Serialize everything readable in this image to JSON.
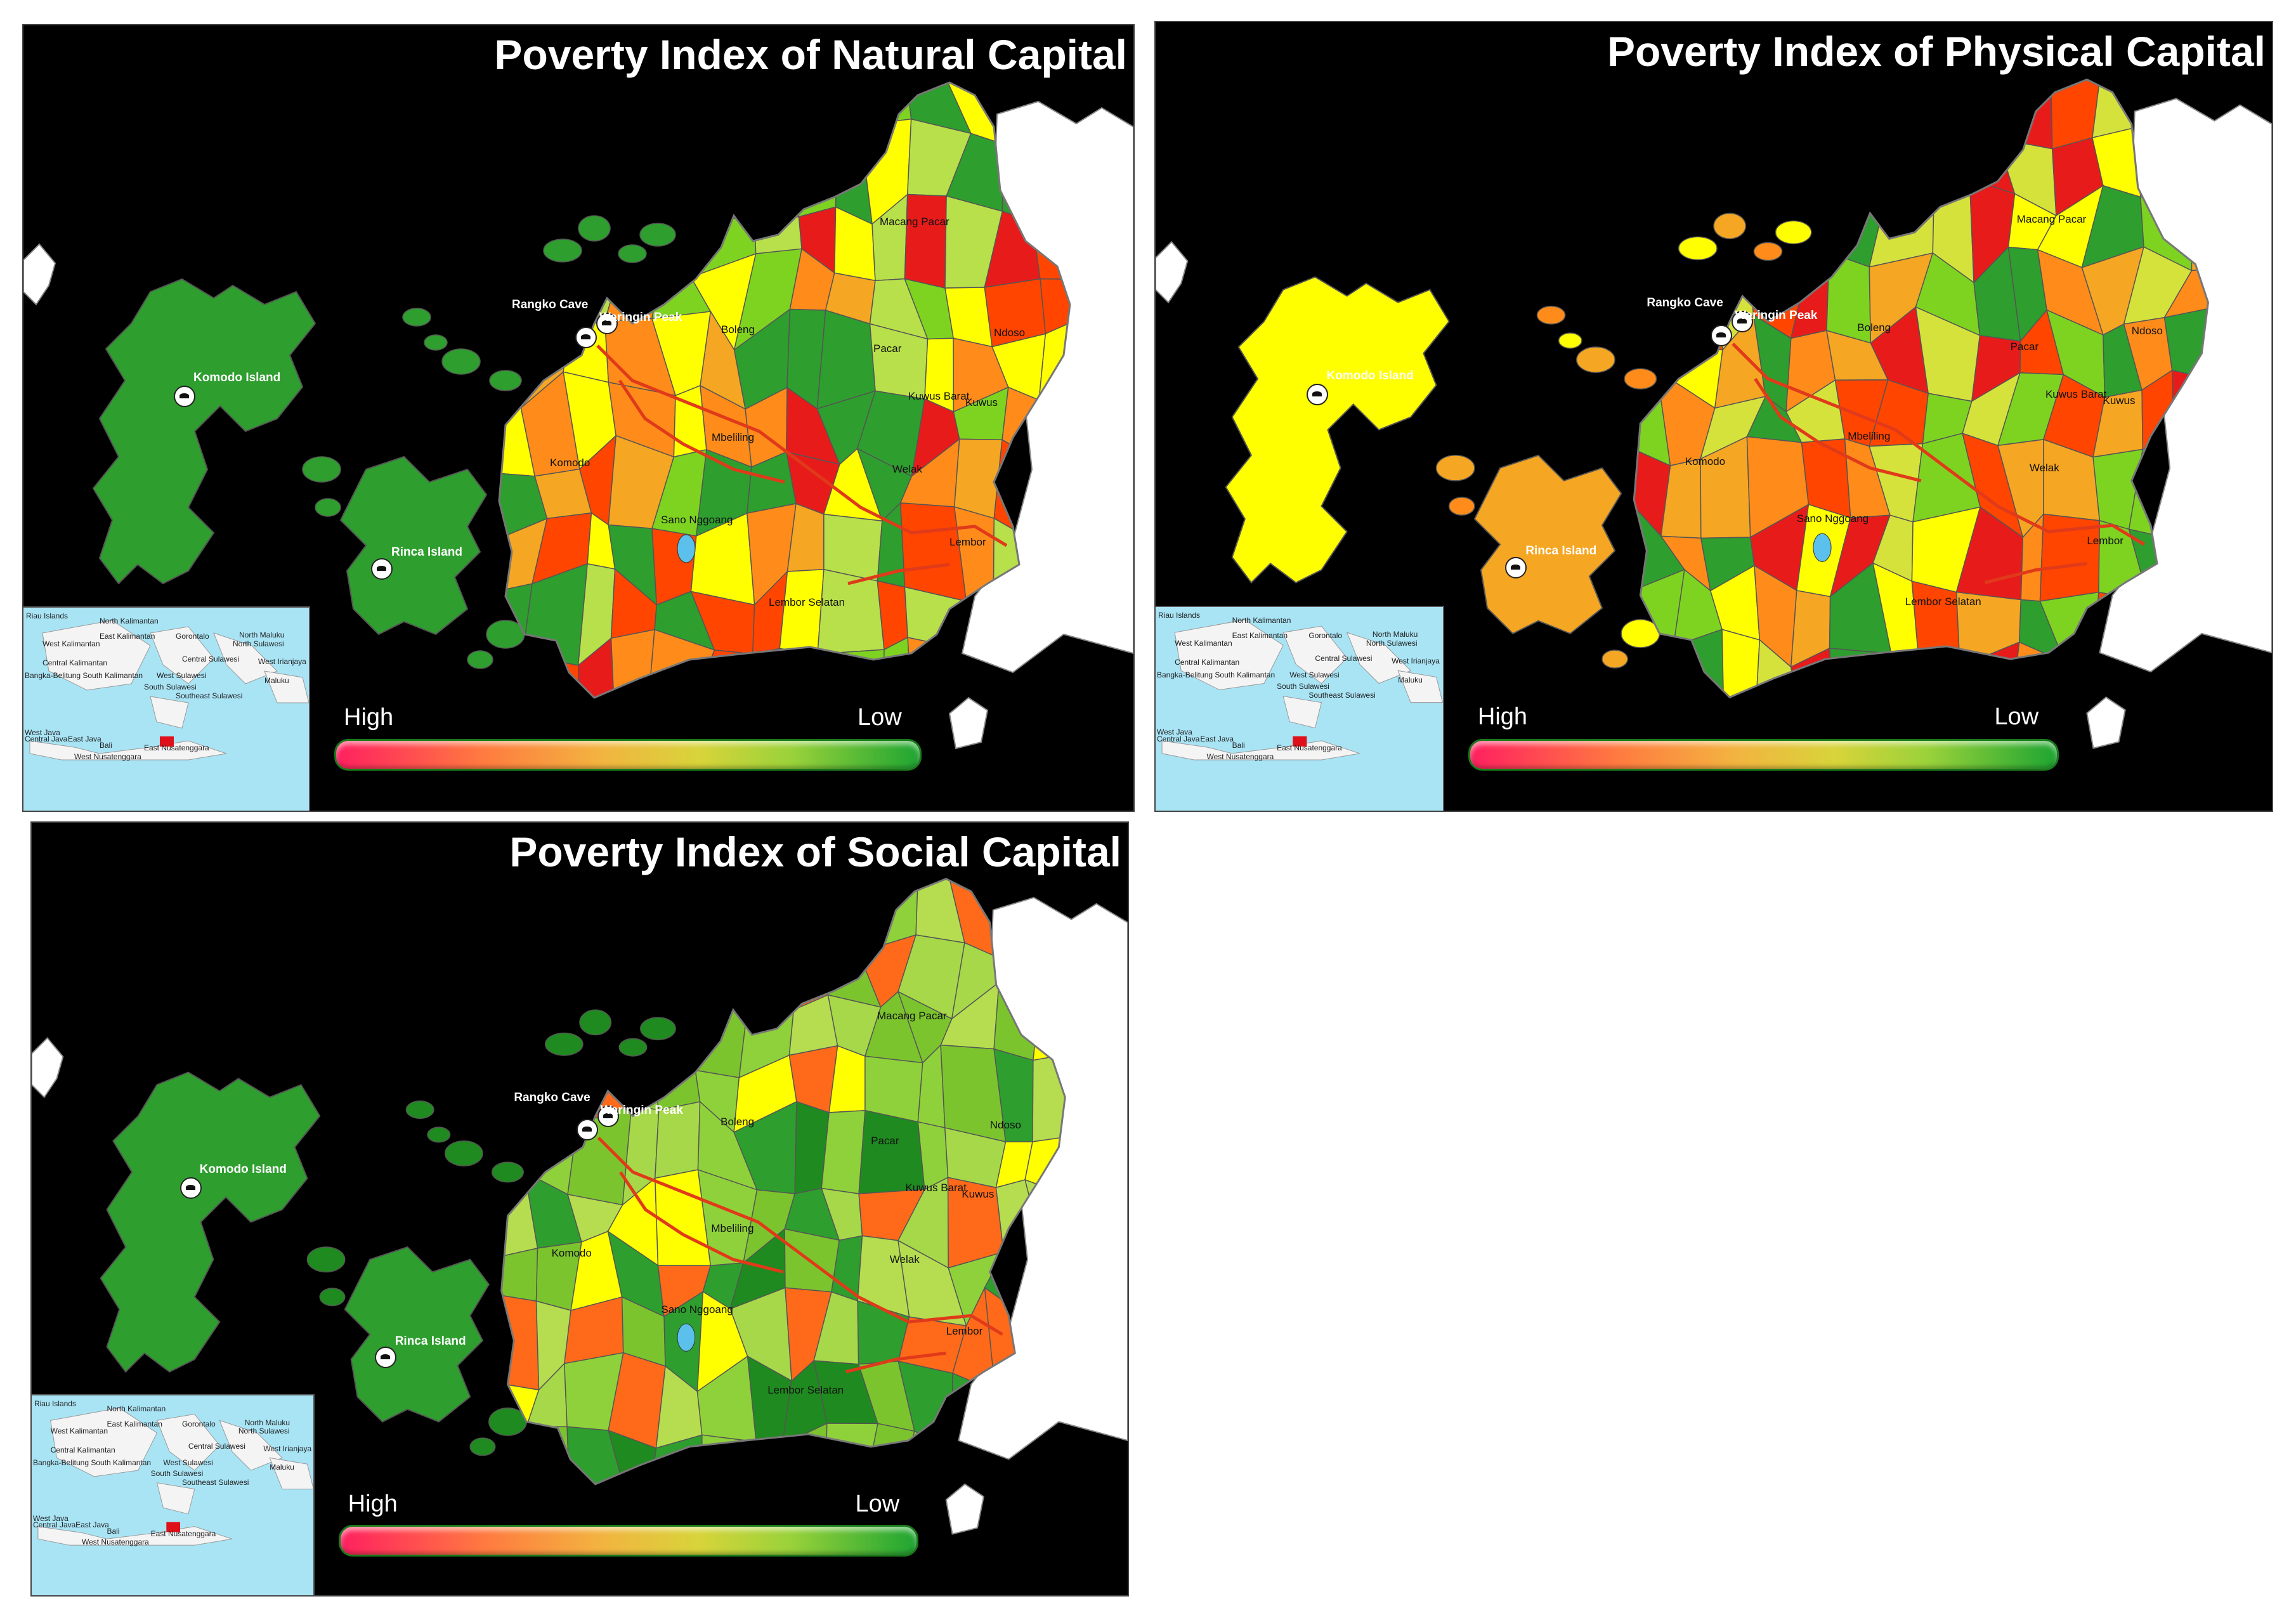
{
  "panels": [
    {
      "id": "natural",
      "title": "Poverty Index of Natural Capital",
      "theme": "natural"
    },
    {
      "id": "physical",
      "title": "Poverty Index of Physical Capital",
      "theme": "physical"
    },
    {
      "id": "social",
      "title": "Poverty Index of Social Capital",
      "theme": "social"
    }
  ],
  "legend": {
    "high_label": "High",
    "low_label": "Low",
    "colors": [
      "#ff2060",
      "#ff7a40",
      "#d8d43a",
      "#9ad23a",
      "#1ea532"
    ]
  },
  "places": {
    "komodo_island": "Komodo Island",
    "rinca_island": "Rinca Island",
    "rangko_cave": "Rangko Cave",
    "waringin_peak": "Waringin Peak",
    "boleng": "Boleng",
    "macang_pacar": "Macang Pacar",
    "pacar": "Pacar",
    "ndoso": "Ndoso",
    "kuwus_barat": "Kuwus Barat",
    "kuwus": "Kuwus",
    "mbeliling": "Mbeliling",
    "komodo": "Komodo",
    "welak": "Welak",
    "sano_nggoang": "Sano Nggoang",
    "lembor": "Lembor",
    "lembor_selatan": "Lembor Selatan"
  },
  "inset_labels": {
    "riau_islands": "Riau Islands",
    "north_kalimantan": "North Kalimantan",
    "east_kalimantan": "East Kalimantan",
    "west_kalimantan": "West Kalimantan",
    "gorontalo": "Gorontalo",
    "north_maluku": "North Maluku",
    "north_sulawesi": "North Sulawesi",
    "central_kalimantan": "Central Kalimantan",
    "central_sulawesi": "Central Sulawesi",
    "west_irianjaya": "West Irianjaya",
    "bangka_south_kal": "Bangka-Belitung South Kalimantan",
    "west_sulawesi": "West Sulawesi",
    "maluku": "Maluku",
    "south_sulawesi": "South Sulawesi",
    "southeast_sulawesi": "Southeast Sulawesi",
    "west_java": "West Java",
    "central_java_east_java": "Central Java",
    "east_java": "East Java",
    "bali": "Bali",
    "east_nusatenggara": "East Nusatenggara",
    "west_nusatenggara": "West Nusatenggara"
  },
  "theme_colors": {
    "natural": [
      "#ffff00",
      "#f5a623",
      "#ff8c1a",
      "#2e9e2e",
      "#7ed321",
      "#ff4500",
      "#e81b1b",
      "#b8e04a"
    ],
    "physical": [
      "#ffff00",
      "#f5a623",
      "#ff8c1a",
      "#2e9e2e",
      "#7ed321",
      "#ff4500",
      "#e81b1b",
      "#d6e23c"
    ],
    "social": [
      "#8fd13a",
      "#7cc42e",
      "#2e9e2e",
      "#1f8a1f",
      "#a6d84a",
      "#ffff00",
      "#ff6a1a",
      "#b5dd4f"
    ]
  }
}
